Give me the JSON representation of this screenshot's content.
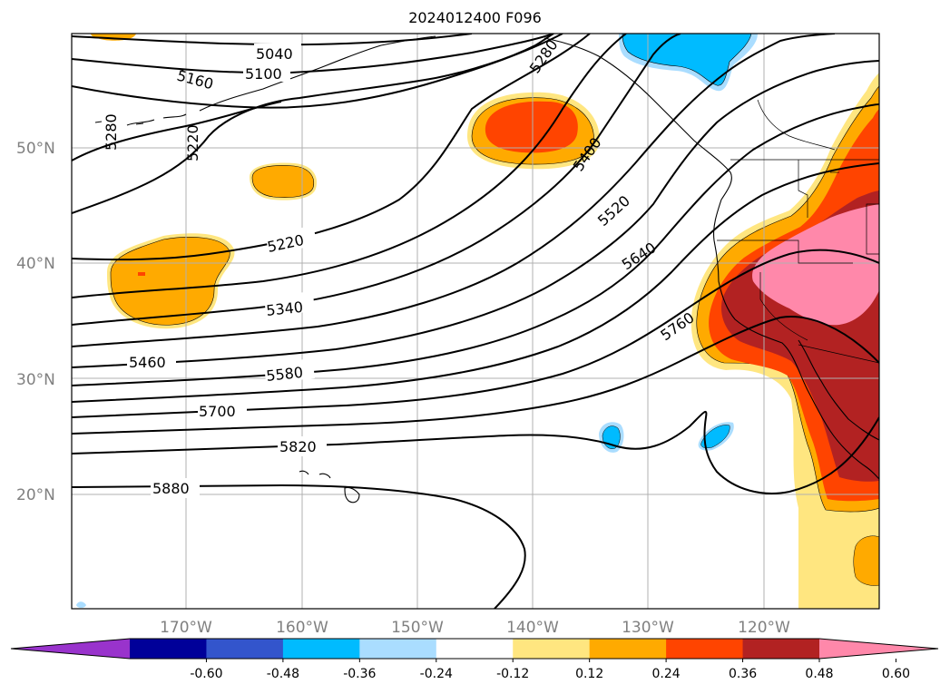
{
  "title": "2024012400 F096",
  "map": {
    "lat_labels": [
      "20°N",
      "30°N",
      "40°N",
      "50°N"
    ],
    "lon_labels": [
      "170°W",
      "160°W",
      "150°W",
      "140°W",
      "130°W",
      "120°W"
    ],
    "gridlines": true,
    "contour_labels": [
      "5040",
      "5100",
      "5160",
      "5220",
      "5280",
      "5280",
      "5220",
      "5400",
      "5520",
      "5640",
      "5760",
      "5340",
      "5460",
      "5580",
      "5700",
      "5820",
      "5880"
    ]
  },
  "colorbar": {
    "tick_labels": [
      "-0.60",
      "-0.48",
      "-0.36",
      "-0.24",
      "-0.12",
      "0.12",
      "0.24",
      "0.36",
      "0.48",
      "0.60"
    ],
    "colors": [
      "#9933cc",
      "#000099",
      "#3355cc",
      "#00bbff",
      "#aaddff",
      "#ffffff",
      "#ffe680",
      "#ffaa00",
      "#ff4400",
      "#b22222",
      "#ff88aa"
    ]
  }
}
